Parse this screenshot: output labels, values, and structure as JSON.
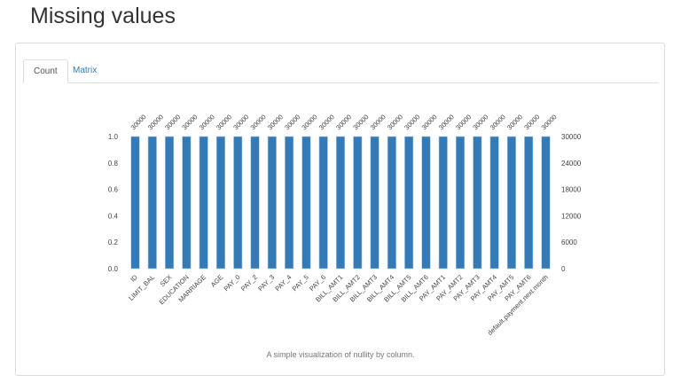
{
  "header": {
    "title": "Missing values"
  },
  "tabs": [
    {
      "label": "Count",
      "active": true
    },
    {
      "label": "Matrix",
      "active": false
    }
  ],
  "caption": "A simple visualization of nullity by column.",
  "colors": {
    "bar": "#337ab7",
    "link": "#337ab7"
  },
  "chart_data": {
    "type": "bar",
    "categories": [
      "ID",
      "LIMIT_BAL",
      "SEX",
      "EDUCATION",
      "MARRIAGE",
      "AGE",
      "PAY_0",
      "PAY_2",
      "PAY_3",
      "PAY_4",
      "PAY_5",
      "PAY_6",
      "BILL_AMT1",
      "BILL_AMT2",
      "BILL_AMT3",
      "BILL_AMT4",
      "BILL_AMT5",
      "BILL_AMT6",
      "PAY_AMT1",
      "PAY_AMT2",
      "PAY_AMT3",
      "PAY_AMT4",
      "PAY_AMT5",
      "PAY_AMT6",
      "default.payment.next.month"
    ],
    "values": [
      1,
      1,
      1,
      1,
      1,
      1,
      1,
      1,
      1,
      1,
      1,
      1,
      1,
      1,
      1,
      1,
      1,
      1,
      1,
      1,
      1,
      1,
      1,
      1,
      1
    ],
    "counts": [
      30000,
      30000,
      30000,
      30000,
      30000,
      30000,
      30000,
      30000,
      30000,
      30000,
      30000,
      30000,
      30000,
      30000,
      30000,
      30000,
      30000,
      30000,
      30000,
      30000,
      30000,
      30000,
      30000,
      30000,
      30000
    ],
    "ylim": [
      0,
      1
    ],
    "left_ticks": [
      "0.0",
      "0.2",
      "0.4",
      "0.6",
      "0.8",
      "1.0"
    ],
    "right_ticks": [
      "0",
      "6000",
      "12000",
      "18000",
      "24000",
      "30000"
    ],
    "grid": false
  }
}
